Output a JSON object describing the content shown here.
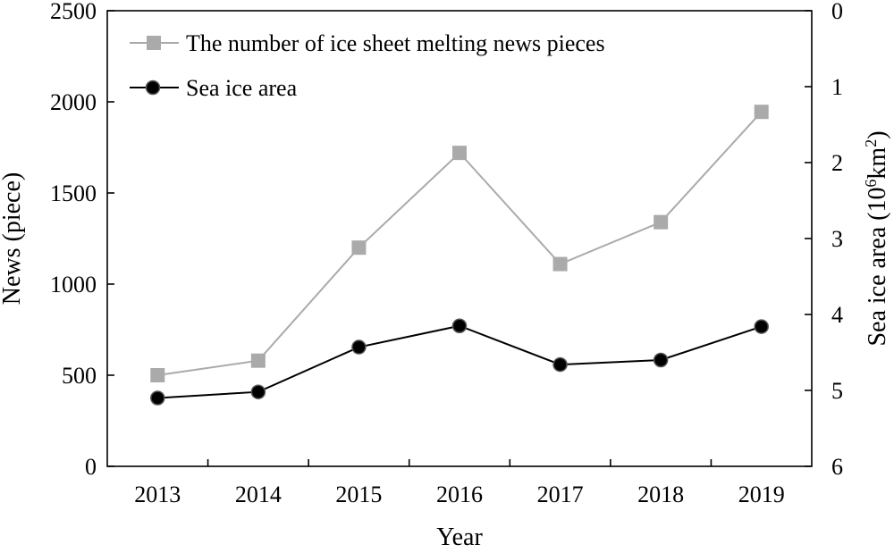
{
  "chart_data": {
    "type": "line",
    "categories": [
      "2013",
      "2014",
      "2015",
      "2016",
      "2017",
      "2018",
      "2019"
    ],
    "xlabel": "Year",
    "ylabel_left": "News (piece)",
    "ylabel_right": "Sea ice area (10",
    "ylabel_right_sup": "6",
    "ylabel_right_mid": "km",
    "ylabel_right_sup2": "2",
    "ylabel_right_end": ")",
    "ylim_left": [
      0,
      2500
    ],
    "yticks_left": [
      "0",
      "500",
      "1000",
      "1500",
      "2000",
      "2500"
    ],
    "ylim_right": [
      6,
      0
    ],
    "yticks_right": [
      "0",
      "1",
      "2",
      "3",
      "4",
      "5",
      "6"
    ],
    "legend_position": "top-left",
    "series": [
      {
        "name": "The number of ice sheet melting news pieces",
        "axis": "left",
        "marker": "square",
        "color": "#aaaaaa",
        "values": [
          500,
          580,
          1200,
          1720,
          1110,
          1340,
          1945
        ]
      },
      {
        "name": "Sea ice area",
        "axis": "right",
        "marker": "circle",
        "color": "#000000",
        "values": [
          5.1,
          5.02,
          4.43,
          4.15,
          4.66,
          4.6,
          4.16
        ]
      }
    ]
  }
}
